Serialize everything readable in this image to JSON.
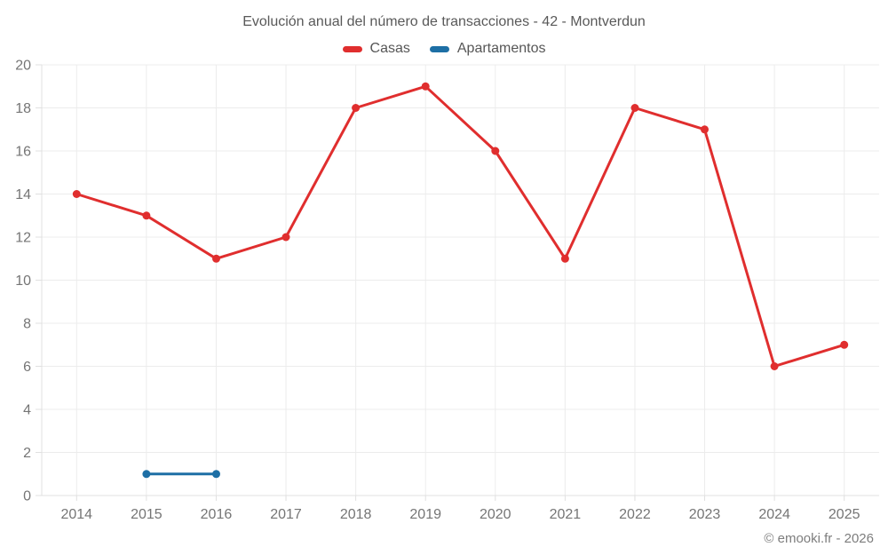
{
  "chart_data": {
    "type": "line",
    "title": "Evolución anual del número de transacciones - 42 - Montverdun",
    "categories": [
      "2014",
      "2015",
      "2016",
      "2017",
      "2018",
      "2019",
      "2020",
      "2021",
      "2022",
      "2023",
      "2024",
      "2025"
    ],
    "series": [
      {
        "name": "Casas",
        "color": "#e02e2e",
        "values": [
          14,
          13,
          11,
          12,
          18,
          19,
          16,
          11,
          18,
          17,
          6,
          7
        ]
      },
      {
        "name": "Apartamentos",
        "color": "#1d6fa5",
        "values": [
          null,
          1,
          1,
          null,
          null,
          null,
          null,
          null,
          null,
          null,
          null,
          null
        ]
      }
    ],
    "ylim": [
      0,
      20
    ],
    "ytick_step": 2,
    "xlabel": "",
    "ylabel": "",
    "grid": "on",
    "legend_position": "top"
  },
  "style": {
    "grid_color": "#ececec",
    "axis_line_color": "#e0e0e0",
    "tick_color": "#e0e0e0",
    "label_color": "#757575",
    "point_radius": 4.5,
    "line_width": 3
  },
  "footer": {
    "copyright": "© emooki.fr - 2026"
  }
}
